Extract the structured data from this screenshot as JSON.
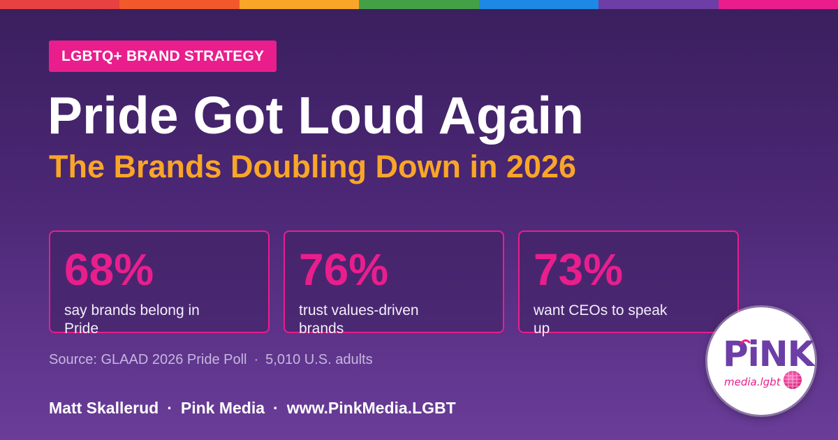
{
  "stripe_colors": [
    "#e84142",
    "#f2592a",
    "#f9a628",
    "#43a047",
    "#1e88e5",
    "#6c3ea6",
    "#e91e8c"
  ],
  "colors": {
    "accent": "#e91e8c",
    "highlight": "#f9a628"
  },
  "tag": "LGBTQ+ BRAND STRATEGY",
  "title": "Pride Got Loud Again",
  "subtitle": "The Brands Doubling Down in 2026",
  "stats": [
    {
      "value": "68%",
      "label": "say brands belong in Pride"
    },
    {
      "value": "76%",
      "label": "trust values-driven brands"
    },
    {
      "value": "73%",
      "label": "want CEOs to speak up"
    }
  ],
  "source": {
    "text": "Source: GLAAD 2026 Pride Poll",
    "separator": "·",
    "sample": "5,010 U.S. adults"
  },
  "footer": {
    "author": "Matt Skallerud",
    "separator": "·",
    "company": "Pink Media",
    "url": "www.PinkMedia.LGBT"
  },
  "logo": {
    "word": "PiNK",
    "sub": "media.lgbt"
  }
}
